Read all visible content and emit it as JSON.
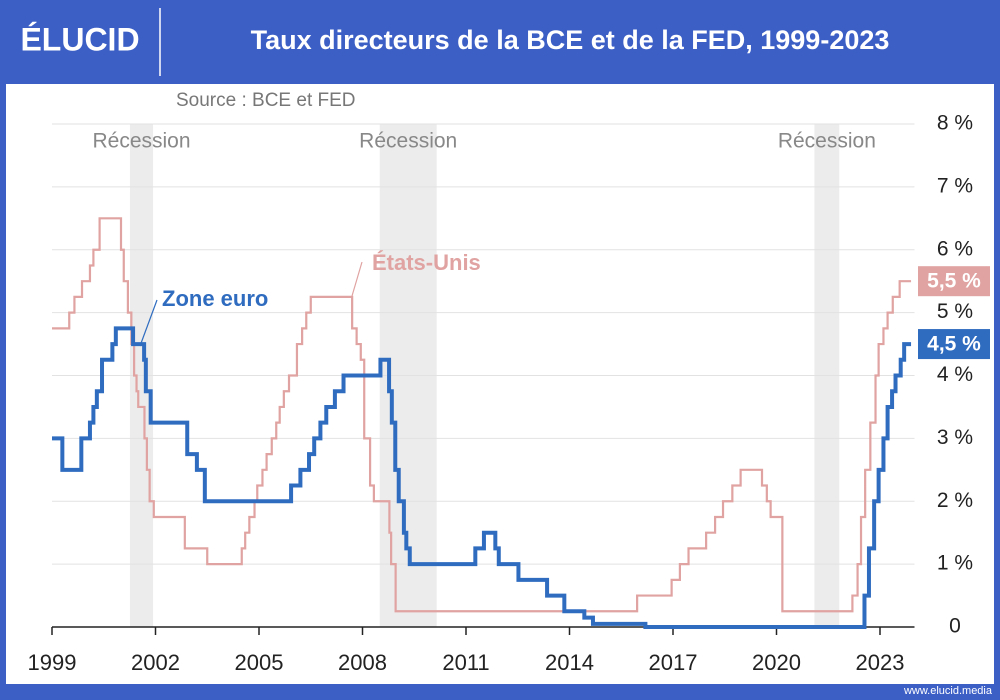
{
  "brand": "ÉLUCID",
  "footer": "www.elucid.media",
  "chart_data": {
    "type": "step-line",
    "title": "Taux directeurs de la BCE et de la FED, 1999-2023",
    "source": "Source : BCE et FED",
    "xlim": [
      1999,
      2024
    ],
    "xticks": [
      1999,
      2002,
      2005,
      2008,
      2011,
      2014,
      2017,
      2020,
      2023
    ],
    "ylim": [
      0,
      8
    ],
    "yticks": [
      0,
      {
        "value": 1,
        "label": "1 %"
      },
      {
        "value": 2,
        "label": "2 %"
      },
      {
        "value": 3,
        "label": "3 %"
      },
      {
        "value": 4,
        "label": "4 %"
      },
      {
        "value": 5,
        "label": "5 %"
      },
      {
        "value": 6,
        "label": "6 %"
      },
      {
        "value": 7,
        "label": "7 %"
      },
      {
        "value": 8,
        "label": "8 %"
      }
    ],
    "grid": true,
    "recessions": [
      {
        "start": 2001.26,
        "end": 2001.93,
        "label": "Récession"
      },
      {
        "start": 2008.5,
        "end": 2010.15,
        "label": "Récession"
      },
      {
        "start": 2021.1,
        "end": 2021.82,
        "label": "Récession"
      }
    ],
    "series": [
      {
        "name": "États-Unis",
        "color": "#e0a3a1",
        "end_label": "5,5 %",
        "x": [
          1999.0,
          1999.5,
          1999.65,
          1999.87,
          2000.1,
          2000.2,
          2000.38,
          2001.0,
          2001.08,
          2001.2,
          2001.3,
          2001.38,
          2001.45,
          2001.5,
          2001.68,
          2001.75,
          2001.83,
          2001.95,
          2002.85,
          2003.5,
          2004.5,
          2004.6,
          2004.72,
          2004.87,
          2004.95,
          2005.1,
          2005.22,
          2005.37,
          2005.5,
          2005.6,
          2005.72,
          2005.87,
          2006.1,
          2006.25,
          2006.37,
          2006.5,
          2007.7,
          2007.83,
          2007.95,
          2008.05,
          2008.22,
          2008.33,
          2008.78,
          2008.83,
          2008.96,
          2015.96,
          2016.96,
          2017.2,
          2017.45,
          2017.96,
          2018.22,
          2018.45,
          2018.72,
          2018.96,
          2019.58,
          2019.72,
          2019.83,
          2020.17,
          2022.2,
          2022.35,
          2022.45,
          2022.57,
          2022.72,
          2022.87,
          2022.96,
          2023.1,
          2023.22,
          2023.37,
          2023.57,
          2023.9
        ],
        "values": [
          4.75,
          5.0,
          5.25,
          5.5,
          5.75,
          6.0,
          6.5,
          6.0,
          5.5,
          5.0,
          4.5,
          4.0,
          3.75,
          3.5,
          3.0,
          2.5,
          2.0,
          1.75,
          1.25,
          1.0,
          1.25,
          1.5,
          1.75,
          2.0,
          2.25,
          2.5,
          2.75,
          3.0,
          3.25,
          3.5,
          3.75,
          4.0,
          4.5,
          4.75,
          5.0,
          5.25,
          4.75,
          4.5,
          4.25,
          3.0,
          2.25,
          2.0,
          1.5,
          1.0,
          0.25,
          0.5,
          0.75,
          1.0,
          1.25,
          1.5,
          1.75,
          2.0,
          2.25,
          2.5,
          2.25,
          2.0,
          1.75,
          0.25,
          0.5,
          1.0,
          1.75,
          2.5,
          3.25,
          4.0,
          4.5,
          4.75,
          5.0,
          5.25,
          5.5,
          5.5
        ]
      },
      {
        "name": "Zone euro",
        "color": "#2f6cc0",
        "end_label": "4,5 %",
        "x": [
          1999.0,
          1999.3,
          1999.85,
          2000.1,
          2000.2,
          2000.3,
          2000.45,
          2000.75,
          2000.85,
          2001.35,
          2001.67,
          2001.72,
          2001.86,
          2002.92,
          2003.2,
          2003.43,
          2005.93,
          2006.2,
          2006.45,
          2006.6,
          2006.78,
          2006.95,
          2007.2,
          2007.45,
          2008.52,
          2008.77,
          2008.85,
          2008.95,
          2009.05,
          2009.2,
          2009.27,
          2009.37,
          2011.27,
          2011.52,
          2011.85,
          2011.95,
          2012.52,
          2013.35,
          2013.85,
          2014.43,
          2014.68,
          2016.2,
          2022.55,
          2022.68,
          2022.83,
          2022.96,
          2023.1,
          2023.22,
          2023.35,
          2023.45,
          2023.6,
          2023.7,
          2023.9
        ],
        "values": [
          3.0,
          2.5,
          3.0,
          3.25,
          3.5,
          3.75,
          4.25,
          4.5,
          4.75,
          4.5,
          4.25,
          3.75,
          3.25,
          2.75,
          2.5,
          2.0,
          2.25,
          2.5,
          2.75,
          3.0,
          3.25,
          3.5,
          3.75,
          4.0,
          4.25,
          3.75,
          3.25,
          2.5,
          2.0,
          1.5,
          1.25,
          1.0,
          1.25,
          1.5,
          1.25,
          1.0,
          0.75,
          0.5,
          0.25,
          0.15,
          0.05,
          0.0,
          0.5,
          1.25,
          2.0,
          2.5,
          3.0,
          3.5,
          3.75,
          4.0,
          4.25,
          4.5,
          4.5
        ]
      }
    ]
  }
}
